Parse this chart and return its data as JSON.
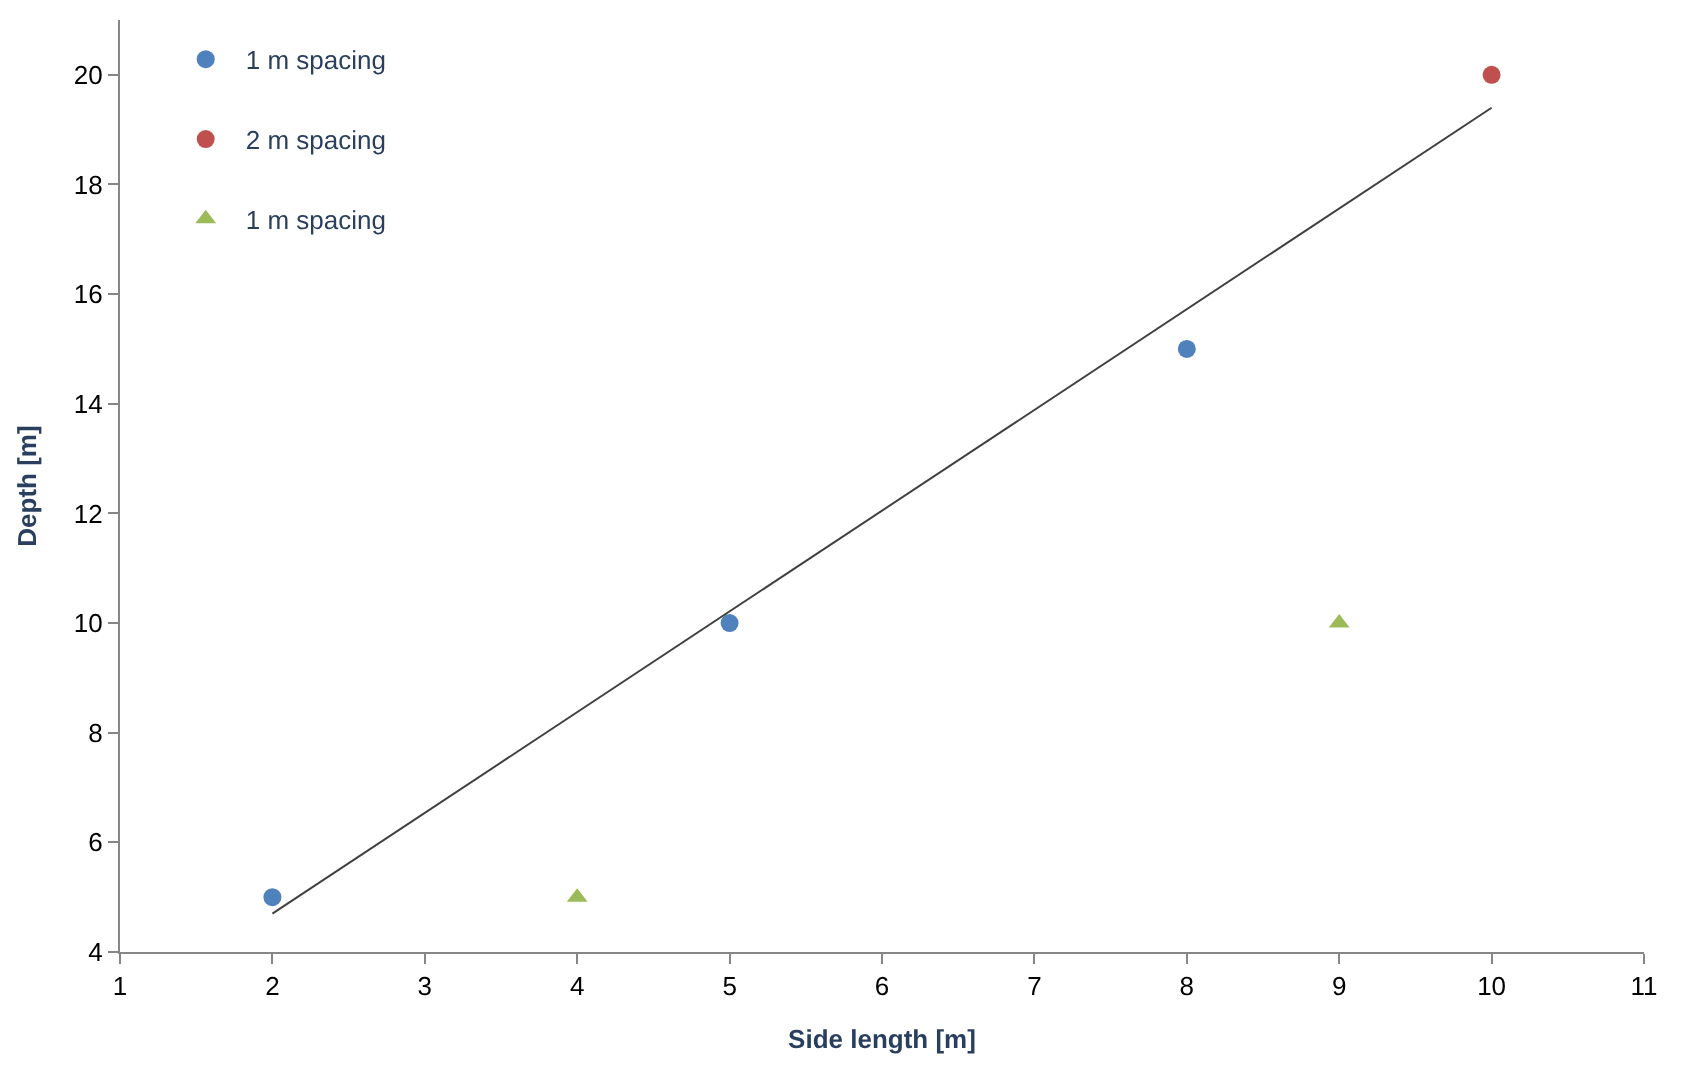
{
  "chart_data": {
    "type": "scatter",
    "xlabel": "Side length [m]",
    "ylabel": "Depth [m]",
    "xlim": [
      1,
      11
    ],
    "xticks": [
      1,
      2,
      3,
      4,
      5,
      6,
      7,
      8,
      9,
      10,
      11
    ],
    "ylim": [
      4,
      21
    ],
    "yticks": [
      4,
      6,
      8,
      10,
      12,
      14,
      16,
      18,
      20
    ],
    "legend": "top left",
    "series": [
      {
        "name": "1 m spacing",
        "color": "#4f81bd",
        "marker": "circle",
        "x": [
          2,
          5,
          8
        ],
        "values": [
          5,
          10,
          15
        ]
      },
      {
        "name": "2 m spacing",
        "color": "#c0504d",
        "marker": "circle",
        "x": [
          10
        ],
        "values": [
          20
        ]
      },
      {
        "name": "1 m spacing",
        "color": "#9bbb59",
        "marker": "triangle",
        "x": [
          4,
          9
        ],
        "values": [
          5,
          10
        ]
      },
      {
        "type": "line",
        "color": "#404040",
        "marker": "none",
        "line_style": "solid",
        "x": [
          2,
          10
        ],
        "values": [
          4.7,
          19.4
        ]
      }
    ]
  }
}
